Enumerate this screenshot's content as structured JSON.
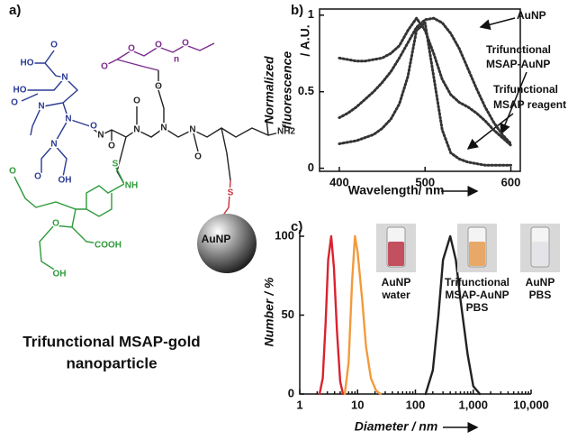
{
  "panel_a": {
    "label": "a)",
    "particle": "AuNP",
    "caption": [
      "Trifunctional MSAP-gold",
      "nanoparticle"
    ],
    "atoms": [
      {
        "text": "O",
        "color": "#2b3a94"
      },
      {
        "text": "HO",
        "color": "#2b3a94"
      },
      {
        "text": "N",
        "color": "#2b3a94"
      },
      {
        "text": "HO",
        "color": "#2b3a94"
      },
      {
        "text": "O",
        "color": "#2b3a94"
      },
      {
        "text": "N",
        "color": "#2b3a94"
      },
      {
        "text": "N",
        "color": "#2b3a94"
      },
      {
        "text": "O",
        "color": "#2b3a94"
      },
      {
        "text": "N",
        "color": "#2b3a94"
      },
      {
        "text": "O",
        "color": "#2b3a94"
      },
      {
        "text": "OH",
        "color": "#2b3a94"
      },
      {
        "text": "N",
        "color": "#222222"
      },
      {
        "text": "O",
        "color": "#222222"
      },
      {
        "text": "N",
        "color": "#222222"
      },
      {
        "text": "O",
        "color": "#222222"
      },
      {
        "text": "N",
        "color": "#222222"
      },
      {
        "text": "O",
        "color": "#222222"
      },
      {
        "text": "N",
        "color": "#222222"
      },
      {
        "text": "O",
        "color": "#222222"
      },
      {
        "text": "NH2",
        "color": "#222222"
      },
      {
        "text": "O",
        "color": "#7a2a8c"
      },
      {
        "text": "O",
        "color": "#7a2a8c"
      },
      {
        "text": "O",
        "color": "#7a2a8c"
      },
      {
        "text": "n",
        "color": "#7a2a8c"
      },
      {
        "text": "O",
        "color": "#7a2a8c"
      },
      {
        "text": "S",
        "color": "#2e9a3a"
      },
      {
        "text": "NH",
        "color": "#2e9a3a"
      },
      {
        "text": "O",
        "color": "#2e9a3a"
      },
      {
        "text": "COOH",
        "color": "#2e9a3a"
      },
      {
        "text": "OH",
        "color": "#2e9a3a"
      },
      {
        "text": "O",
        "color": "#2e9a3a"
      },
      {
        "text": "S",
        "color": "#c8323c"
      }
    ]
  },
  "chart_data": [
    {
      "type": "line",
      "panel_label": "b)",
      "xlabel": "Wavelength/ nm",
      "ylabel": [
        "Normalized",
        "fluorescence",
        "/ A.U."
      ],
      "x": [
        400,
        410,
        420,
        430,
        440,
        450,
        460,
        470,
        480,
        490,
        500,
        510,
        520,
        530,
        540,
        550,
        560,
        570,
        580,
        590,
        600
      ],
      "xlim": [
        377,
        611
      ],
      "xticks": [
        400,
        500,
        600
      ],
      "ylim": [
        -0.02,
        1.04
      ],
      "yticks": [
        0,
        0.5,
        1
      ],
      "series": [
        {
          "label_lines": [
            "AuNP"
          ],
          "color": "#333333",
          "values": [
            0.33,
            0.36,
            0.4,
            0.45,
            0.5,
            0.56,
            0.63,
            0.72,
            0.82,
            0.92,
            0.97,
            0.98,
            0.95,
            0.88,
            0.78,
            0.65,
            0.52,
            0.4,
            0.3,
            0.22,
            0.16
          ]
        },
        {
          "label_lines": [
            "Trifunctional",
            "MSAP-AuNP"
          ],
          "color": "#333333",
          "values": [
            0.72,
            0.71,
            0.7,
            0.7,
            0.71,
            0.72,
            0.75,
            0.8,
            0.9,
            0.98,
            0.9,
            0.75,
            0.58,
            0.48,
            0.43,
            0.4,
            0.36,
            0.31,
            0.25,
            0.2,
            0.15
          ]
        },
        {
          "label_lines": [
            "Trifunctional",
            "MSAP reagent"
          ],
          "color": "#333333",
          "values": [
            0.16,
            0.17,
            0.18,
            0.2,
            0.22,
            0.26,
            0.32,
            0.42,
            0.6,
            0.9,
            0.95,
            0.6,
            0.25,
            0.1,
            0.06,
            0.04,
            0.03,
            0.02,
            0.02,
            0.02,
            0.02
          ]
        }
      ]
    },
    {
      "type": "line",
      "panel_label": "c)",
      "xlabel": "Diameter / nm",
      "ylabel": [
        "Number / %"
      ],
      "xscale": "log",
      "xlim": [
        1,
        10000
      ],
      "xticks": [
        1,
        10,
        100,
        {
          "value": 1000,
          "label": "1,000"
        },
        {
          "value": 10000,
          "label": "10,000"
        }
      ],
      "ylim": [
        0,
        104
      ],
      "yticks": [
        0,
        50,
        100
      ],
      "series": [
        {
          "color": "#d9232e",
          "x": [
            2.2,
            2.5,
            2.8,
            3.1,
            3.5,
            3.9,
            4.4,
            5,
            5.6
          ],
          "values": [
            0,
            10,
            45,
            85,
            100,
            80,
            40,
            8,
            0
          ]
        },
        {
          "color": "#f39a3c",
          "x": [
            6,
            7,
            8,
            9,
            10,
            12,
            14,
            17,
            21,
            25
          ],
          "values": [
            0,
            20,
            70,
            100,
            90,
            60,
            30,
            10,
            2,
            0
          ]
        },
        {
          "color": "#222222",
          "x": [
            150,
            200,
            250,
            300,
            400,
            500,
            600,
            800,
            1000,
            1300
          ],
          "values": [
            0,
            15,
            50,
            85,
            100,
            85,
            60,
            25,
            5,
            0
          ]
        }
      ],
      "insets": [
        {
          "lines": [
            "AuNP",
            "water"
          ],
          "color": "#c2505e"
        },
        {
          "lines": [
            "Trifunctional",
            "MSAP-AuNP",
            "PBS"
          ],
          "color": "#e8a868"
        },
        {
          "lines": [
            "AuNP",
            "PBS"
          ],
          "color": "#e4e4e8"
        }
      ]
    }
  ]
}
